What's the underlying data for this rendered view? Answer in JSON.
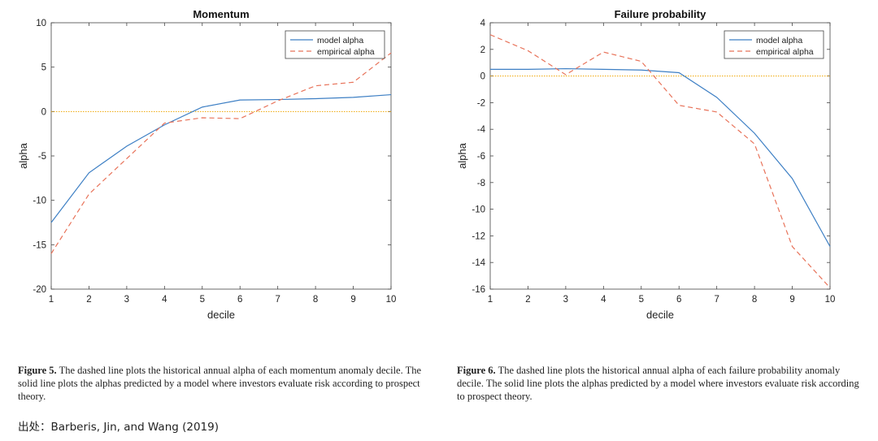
{
  "chart_data": [
    {
      "type": "line",
      "title": "Momentum",
      "xlabel": "decile",
      "ylabel": "alpha",
      "x": [
        1,
        2,
        3,
        4,
        5,
        6,
        7,
        8,
        9,
        10
      ],
      "xlim": [
        1,
        10
      ],
      "ylim": [
        -20,
        10
      ],
      "yticks": [
        -20,
        -15,
        -10,
        -5,
        0,
        5,
        10
      ],
      "xticks": [
        1,
        2,
        3,
        4,
        5,
        6,
        7,
        8,
        9,
        10
      ],
      "legend_position": "top-right",
      "series": [
        {
          "name": "model alpha",
          "style": "solid",
          "color": "#3d7fc4",
          "values": [
            -12.5,
            -6.9,
            -3.9,
            -1.5,
            0.5,
            1.3,
            1.35,
            1.45,
            1.6,
            1.9
          ]
        },
        {
          "name": "empirical alpha",
          "style": "dashed",
          "color": "#e8735a",
          "values": [
            -16.0,
            -9.3,
            -5.3,
            -1.3,
            -0.7,
            -0.8,
            1.2,
            2.9,
            3.3,
            6.6
          ]
        }
      ],
      "reference_line": {
        "y": 0,
        "style": "dotted",
        "color": "#f0a500"
      }
    },
    {
      "type": "line",
      "title": "Failure probability",
      "xlabel": "decile",
      "ylabel": "alpha",
      "x": [
        1,
        2,
        3,
        4,
        5,
        6,
        7,
        8,
        9,
        10
      ],
      "xlim": [
        1,
        10
      ],
      "ylim": [
        -16,
        4
      ],
      "yticks": [
        -16,
        -14,
        -12,
        -10,
        -8,
        -6,
        -4,
        -2,
        0,
        2,
        4
      ],
      "xticks": [
        1,
        2,
        3,
        4,
        5,
        6,
        7,
        8,
        9,
        10
      ],
      "legend_position": "top-right",
      "series": [
        {
          "name": "model alpha",
          "style": "solid",
          "color": "#3d7fc4",
          "values": [
            0.5,
            0.5,
            0.55,
            0.5,
            0.45,
            0.25,
            -1.6,
            -4.3,
            -7.7,
            -12.8
          ]
        },
        {
          "name": "empirical alpha",
          "style": "dashed",
          "color": "#e8735a",
          "values": [
            3.1,
            1.9,
            0.1,
            1.8,
            1.1,
            -2.2,
            -2.7,
            -5.1,
            -12.8,
            -15.9
          ]
        }
      ],
      "reference_line": {
        "y": 0,
        "style": "dotted",
        "color": "#f0a500"
      }
    }
  ],
  "captions": {
    "left_label": "Figure 5.",
    "left_text": " The dashed line plots the historical annual alpha of each momentum anomaly decile. The solid line plots the alphas predicted by a model where investors evaluate risk according to prospect theory.",
    "right_label": "Figure 6.",
    "right_text": " The dashed line plots the historical annual alpha of each failure probability anomaly decile. The solid line plots the alphas predicted by a model where investors evaluate risk according to prospect theory."
  },
  "source": "出处：Barberis, Jin, and Wang (2019)"
}
